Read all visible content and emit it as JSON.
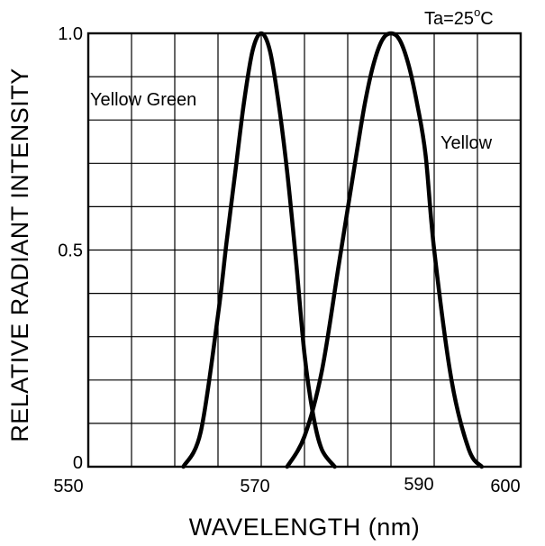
{
  "chart_data": {
    "type": "line",
    "xlabel": "WAVELENGTH (nm)",
    "ylabel": "RELATIVE RADIANT INTENSITY",
    "xlim": [
      550,
      600
    ],
    "ylim": [
      0,
      1.0
    ],
    "x_ticks": [
      "550",
      "570",
      "590",
      "600"
    ],
    "x_tick_values": [
      550,
      570,
      590,
      600
    ],
    "y_ticks": [
      "0",
      "0.5",
      "1.0"
    ],
    "y_tick_values": [
      0,
      0.5,
      1.0
    ],
    "grid": true,
    "condition": {
      "prefix": "Ta=25",
      "sup": "o",
      "suffix": "C"
    },
    "series": [
      {
        "name": "Yellow Green",
        "x": [
          561,
          563,
          565,
          566,
          567,
          568,
          569,
          570,
          571,
          572,
          573,
          574,
          575,
          576,
          577,
          578.5
        ],
        "y": [
          0,
          0.08,
          0.35,
          0.52,
          0.68,
          0.84,
          0.96,
          1.0,
          0.96,
          0.84,
          0.68,
          0.48,
          0.26,
          0.12,
          0.04,
          0
        ]
      },
      {
        "name": "Yellow",
        "x": [
          573,
          575,
          577,
          579,
          581,
          582,
          583,
          584,
          585,
          586,
          587,
          588,
          589,
          590,
          592,
          594,
          595.5
        ],
        "y": [
          0,
          0.07,
          0.22,
          0.47,
          0.72,
          0.84,
          0.93,
          0.985,
          1.0,
          0.985,
          0.93,
          0.84,
          0.72,
          0.5,
          0.2,
          0.04,
          0
        ]
      }
    ]
  }
}
